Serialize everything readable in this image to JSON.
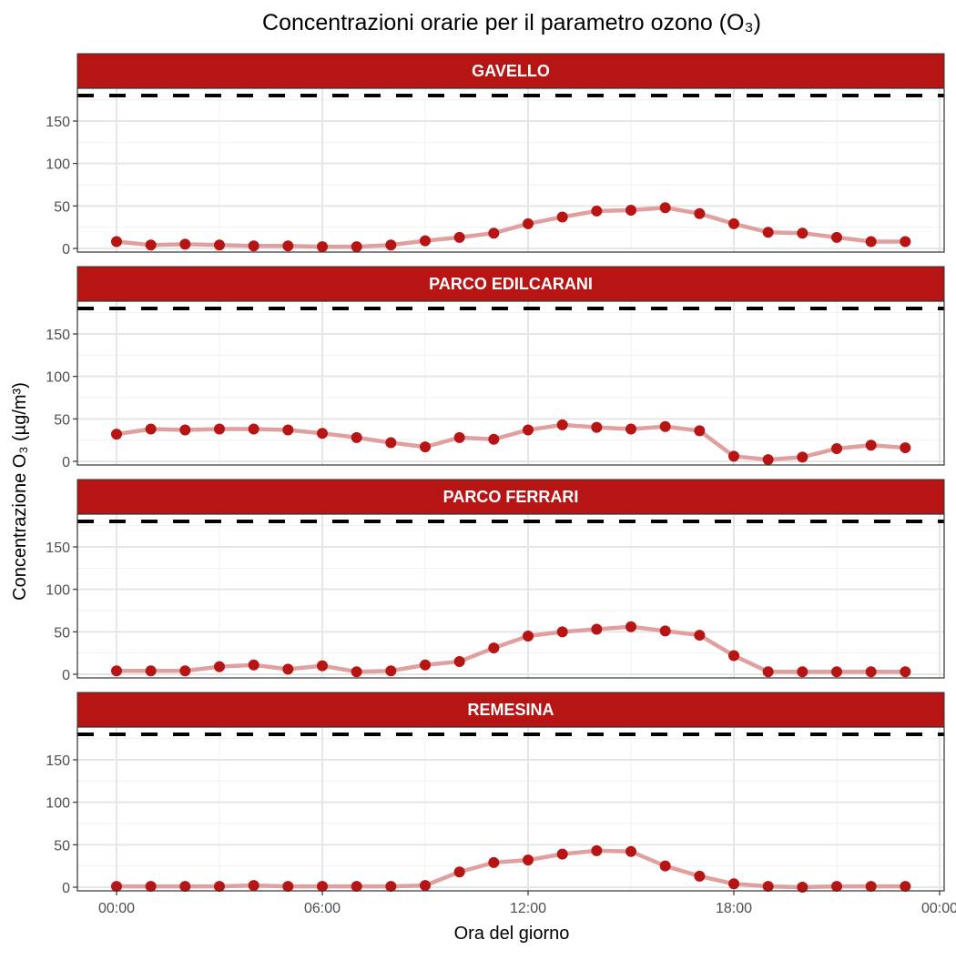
{
  "chart_data": {
    "type": "line",
    "title": "Concentrazioni orarie per il parametro ozono (O₃)",
    "xlabel": "Ora del giorno",
    "ylabel": "Concentrazione O₃ (µg/m³)",
    "x_ticks": [
      0,
      6,
      12,
      18,
      24
    ],
    "x_tick_labels": [
      "00:00",
      "06:00",
      "12:00",
      "18:00",
      "00:00"
    ],
    "y_ticks": [
      0,
      50,
      100,
      150
    ],
    "y_tick_labels": [
      "0",
      "50",
      "100",
      "150"
    ],
    "ylim": [
      -5,
      188
    ],
    "xlim": [
      -1.2,
      24.1
    ],
    "threshold": 180,
    "grid": true,
    "colors": {
      "strip": "#B71414",
      "point": "#B71414",
      "line": "#E0A0A0",
      "threshold": "#000000"
    },
    "x_hours": [
      0,
      1,
      2,
      3,
      4,
      5,
      6,
      7,
      8,
      9,
      10,
      11,
      12,
      13,
      14,
      15,
      16,
      17,
      18,
      19,
      20,
      21,
      22,
      23
    ],
    "series": [
      {
        "name": "GAVELLO",
        "values": [
          8,
          4,
          5,
          4,
          3,
          3,
          2,
          2,
          4,
          9,
          13,
          18,
          29,
          37,
          44,
          45,
          48,
          41,
          29,
          19,
          18,
          13,
          8,
          8
        ]
      },
      {
        "name": "PARCO EDILCARANI",
        "values": [
          32,
          38,
          37,
          38,
          38,
          37,
          33,
          28,
          22,
          17,
          28,
          26,
          37,
          43,
          40,
          38,
          41,
          36,
          6,
          2,
          5,
          15,
          19,
          16
        ]
      },
      {
        "name": "PARCO FERRARI",
        "values": [
          4,
          4,
          4,
          9,
          11,
          6,
          10,
          3,
          4,
          11,
          15,
          31,
          45,
          50,
          53,
          56,
          51,
          46,
          22,
          3,
          3,
          3,
          3,
          3
        ]
      },
      {
        "name": "REMESINA",
        "values": [
          1,
          1,
          1,
          1,
          2,
          1,
          1,
          1,
          1,
          2,
          18,
          29,
          32,
          39,
          43,
          42,
          25,
          13,
          4,
          1,
          0,
          1,
          1,
          1
        ]
      }
    ]
  }
}
